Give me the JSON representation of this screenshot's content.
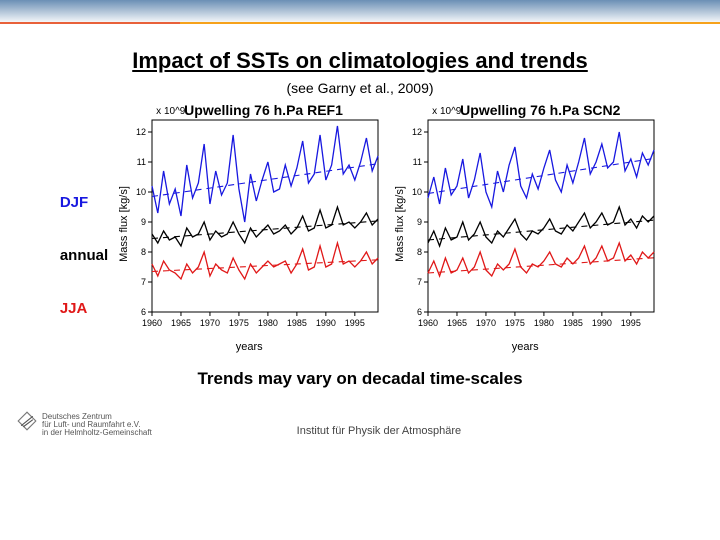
{
  "title": "Impact of SSTs on climatologies and trends",
  "subtitle": "(see Garny et al., 2009)",
  "legend": {
    "djf": "DJF",
    "annual": "annual",
    "jja": "JJA",
    "djf_color": "#1818e0",
    "annual_color": "#000000",
    "jja_color": "#e01818"
  },
  "x_ticks": [
    1960,
    1965,
    1970,
    1975,
    1980,
    1985,
    1990,
    1995
  ],
  "y_ticks": [
    6,
    7,
    8,
    9,
    10,
    11,
    12
  ],
  "xlim": [
    1960,
    1999
  ],
  "ylim": [
    6,
    12.4
  ],
  "exponent_label": "x 10^9",
  "axis_x_label": "years",
  "axis_y_label": "Mass flux [kg/s]",
  "chart_bg": "#ffffff",
  "axis_color": "#000000",
  "dash_color_opacity": 1,
  "line_width": 1.3,
  "dash_width": 1.1,
  "panels": {
    "left": {
      "title": "Upwelling 76 h.Pa REF1",
      "djf": [
        10.2,
        9.3,
        10.7,
        9.6,
        10.1,
        9.2,
        10.9,
        9.8,
        10.3,
        11.6,
        9.6,
        10.7,
        9.9,
        10.3,
        11.9,
        10.1,
        9.0,
        10.6,
        9.7,
        10.4,
        11.0,
        10.0,
        10.1,
        10.9,
        10.2,
        10.8,
        11.7,
        10.3,
        10.6,
        11.9,
        10.4,
        10.9,
        12.2,
        10.6,
        10.9,
        10.4,
        11.0,
        11.8,
        10.7,
        11.2
      ],
      "annual": [
        8.6,
        8.3,
        8.7,
        8.4,
        8.5,
        8.2,
        8.8,
        8.5,
        8.6,
        9.0,
        8.4,
        8.7,
        8.5,
        8.6,
        9.0,
        8.6,
        8.3,
        8.8,
        8.5,
        8.7,
        8.9,
        8.6,
        8.7,
        8.9,
        8.6,
        8.8,
        9.2,
        8.7,
        8.8,
        9.4,
        8.8,
        8.9,
        9.5,
        8.9,
        9.0,
        8.8,
        9.0,
        9.3,
        8.9,
        9.1
      ],
      "jja": [
        7.6,
        7.2,
        7.7,
        7.4,
        7.3,
        7.1,
        7.6,
        7.3,
        7.5,
        8.0,
        7.2,
        7.6,
        7.4,
        7.3,
        7.8,
        7.4,
        7.1,
        7.6,
        7.3,
        7.5,
        7.7,
        7.5,
        7.6,
        7.7,
        7.3,
        7.6,
        8.1,
        7.4,
        7.5,
        8.2,
        7.5,
        7.6,
        8.3,
        7.6,
        7.7,
        7.5,
        7.7,
        8.0,
        7.6,
        7.8
      ],
      "trend_djf": {
        "a": 9.85,
        "b": 0.028
      },
      "trend_annual": {
        "a": 8.45,
        "b": 0.015
      },
      "trend_jja": {
        "a": 7.35,
        "b": 0.01
      }
    },
    "right": {
      "title": "Upwelling 76 h.Pa SCN2",
      "djf": [
        9.8,
        10.5,
        9.6,
        10.8,
        9.9,
        10.2,
        11.1,
        9.8,
        10.4,
        11.3,
        10.0,
        9.5,
        10.7,
        10.0,
        10.9,
        11.5,
        10.2,
        9.8,
        10.6,
        10.1,
        10.8,
        11.4,
        10.4,
        10.0,
        10.9,
        10.3,
        11.0,
        11.8,
        10.6,
        11.0,
        11.6,
        10.8,
        11.0,
        12.0,
        10.7,
        11.1,
        10.5,
        11.3,
        10.9,
        11.4
      ],
      "annual": [
        8.3,
        8.7,
        8.2,
        8.8,
        8.4,
        8.5,
        9.0,
        8.4,
        8.6,
        9.0,
        8.5,
        8.3,
        8.7,
        8.5,
        8.8,
        9.1,
        8.6,
        8.4,
        8.7,
        8.6,
        8.8,
        9.1,
        8.7,
        8.6,
        8.9,
        8.7,
        9.0,
        9.3,
        8.8,
        9.0,
        9.3,
        8.9,
        9.0,
        9.5,
        8.9,
        9.1,
        8.8,
        9.2,
        9.0,
        9.2
      ],
      "jja": [
        7.3,
        7.7,
        7.2,
        7.8,
        7.3,
        7.4,
        7.8,
        7.3,
        7.5,
        8.0,
        7.4,
        7.2,
        7.6,
        7.4,
        7.6,
        8.1,
        7.5,
        7.3,
        7.6,
        7.5,
        7.7,
        8.0,
        7.6,
        7.5,
        7.8,
        7.6,
        7.8,
        8.2,
        7.6,
        7.8,
        8.2,
        7.7,
        7.8,
        8.3,
        7.7,
        7.9,
        7.6,
        8.0,
        7.8,
        8.0
      ],
      "trend_djf": {
        "a": 9.95,
        "b": 0.03
      },
      "trend_annual": {
        "a": 8.4,
        "b": 0.017
      },
      "trend_jja": {
        "a": 7.3,
        "b": 0.013
      }
    }
  },
  "bottom_note": "Trends may vary on decadal time-scales",
  "footer_center": "Institut für Physik der Atmosphäre",
  "logo_text": "Deutsches Zentrum\nfür Luft- und Raumfahrt e.V.\nin der Helmholtz-Gemeinschaft"
}
